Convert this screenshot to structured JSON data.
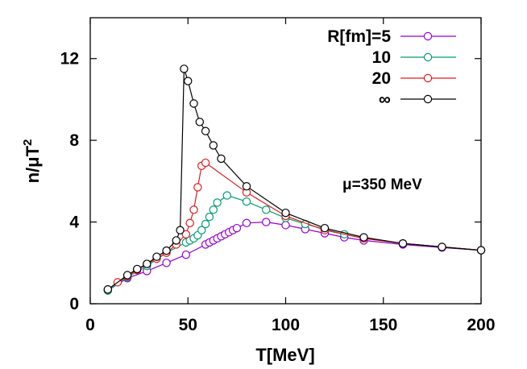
{
  "chart_data": {
    "type": "line",
    "xlabel": "T[MeV]",
    "ylabel_base": "n/μT",
    "ylabel_sup": "2",
    "xlim": [
      0,
      200
    ],
    "ylim": [
      0,
      14
    ],
    "xticks": [
      0,
      50,
      100,
      150,
      200
    ],
    "yticks": [
      0,
      4,
      8,
      12
    ],
    "grid": false,
    "legend_position": "top-right",
    "annotation": "μ=350 MeV",
    "series": [
      {
        "name": "R[fm]=5",
        "color": "#9400d3",
        "x": [
          9,
          19,
          29,
          39,
          49,
          59,
          61,
          63,
          65,
          67,
          69,
          71,
          73,
          75,
          80,
          90,
          100,
          110,
          120,
          130,
          140,
          160,
          180,
          200
        ],
        "y": [
          0.65,
          1.25,
          1.6,
          2.0,
          2.4,
          2.9,
          3.0,
          3.1,
          3.2,
          3.3,
          3.4,
          3.5,
          3.6,
          3.7,
          3.95,
          4.0,
          3.85,
          3.65,
          3.45,
          3.25,
          3.1,
          2.9,
          2.75,
          2.62
        ]
      },
      {
        "name": "10",
        "color": "#009e73",
        "x": [
          9,
          19,
          29,
          39,
          49,
          51,
          53,
          55,
          57,
          59,
          61,
          63,
          65,
          70,
          80,
          90,
          100,
          110,
          120,
          130,
          140,
          160,
          180,
          200
        ],
        "y": [
          0.65,
          1.3,
          1.85,
          2.5,
          3.0,
          3.1,
          3.2,
          3.35,
          3.6,
          3.9,
          4.25,
          4.6,
          4.95,
          5.3,
          5.0,
          4.6,
          4.2,
          3.9,
          3.65,
          3.4,
          3.2,
          2.95,
          2.78,
          2.62
        ]
      },
      {
        "name": "20",
        "color": "#e41a1c",
        "x": [
          9,
          14,
          19,
          24,
          29,
          34,
          39,
          44,
          49,
          51,
          53,
          55,
          57,
          59,
          80,
          100,
          120,
          140,
          160,
          180,
          200
        ],
        "y": [
          0.7,
          1.05,
          1.35,
          1.65,
          1.95,
          2.2,
          2.5,
          2.9,
          3.4,
          3.95,
          4.6,
          5.7,
          6.75,
          6.9,
          5.45,
          4.3,
          3.6,
          3.2,
          2.95,
          2.78,
          2.62
        ]
      },
      {
        "name": "∞",
        "color": "#000000",
        "x": [
          9,
          19,
          24,
          29,
          34,
          39,
          44,
          46,
          48,
          50,
          53,
          56,
          59,
          63,
          67,
          80,
          100,
          120,
          140,
          160,
          180,
          200
        ],
        "y": [
          0.7,
          1.4,
          1.7,
          1.95,
          2.3,
          2.6,
          3.1,
          3.6,
          11.5,
          10.9,
          9.8,
          8.9,
          8.45,
          7.75,
          7.1,
          5.75,
          4.45,
          3.7,
          3.25,
          2.95,
          2.78,
          2.62
        ]
      }
    ]
  }
}
